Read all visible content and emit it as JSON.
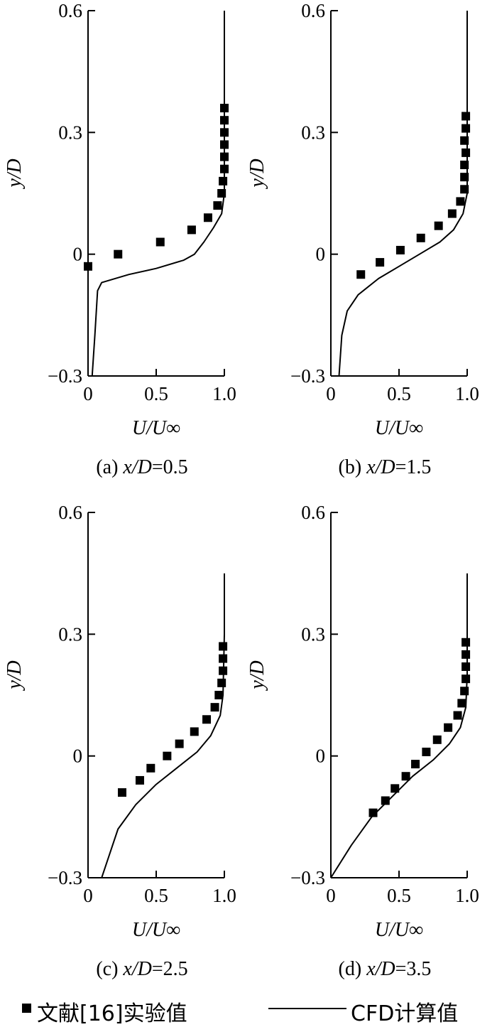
{
  "chart_data": [
    {
      "type": "scatter+line",
      "caption_prefix": "(a) ",
      "caption_var": "x/D",
      "caption_value": "=0.5",
      "xlabel": "U/U∞",
      "ylabel": "y/D",
      "xlim": [
        0,
        1.0
      ],
      "ylim": [
        -0.3,
        0.6
      ],
      "xticks": [
        "0",
        "0.5",
        "1.0"
      ],
      "xtick_values": [
        0,
        0.5,
        1.0
      ],
      "yticks": [
        "0.6",
        "0.3",
        "0",
        "−0.3"
      ],
      "ytick_values": [
        0.6,
        0.3,
        0,
        -0.3
      ],
      "experiment": [
        [
          0,
          -0.03
        ],
        [
          0.22,
          0.0
        ],
        [
          0.53,
          0.03
        ],
        [
          0.76,
          0.06
        ],
        [
          0.88,
          0.09
        ],
        [
          0.95,
          0.12
        ],
        [
          0.98,
          0.15
        ],
        [
          0.99,
          0.18
        ],
        [
          1.0,
          0.21
        ],
        [
          1.0,
          0.24
        ],
        [
          1.0,
          0.27
        ],
        [
          1.0,
          0.3
        ],
        [
          1.0,
          0.33
        ],
        [
          1.0,
          0.36
        ]
      ],
      "cfd": [
        [
          0.03,
          -0.3
        ],
        [
          0.05,
          -0.2
        ],
        [
          0.07,
          -0.09
        ],
        [
          0.1,
          -0.07
        ],
        [
          0.3,
          -0.05
        ],
        [
          0.5,
          -0.035
        ],
        [
          0.7,
          -0.015
        ],
        [
          0.78,
          0.0
        ],
        [
          0.85,
          0.03
        ],
        [
          0.92,
          0.065
        ],
        [
          0.98,
          0.1
        ],
        [
          1.0,
          0.15
        ],
        [
          1.0,
          0.6
        ]
      ]
    },
    {
      "type": "scatter+line",
      "caption_prefix": "(b) ",
      "caption_var": "x/D",
      "caption_value": "=1.5",
      "xlabel": "U/U∞",
      "ylabel": "y/D",
      "xlim": [
        0,
        1.0
      ],
      "ylim": [
        -0.3,
        0.6
      ],
      "xticks": [
        "0",
        "0.5",
        "1.0"
      ],
      "xtick_values": [
        0,
        0.5,
        1.0
      ],
      "yticks": [
        "0.6",
        "0.3",
        "0",
        "−0.3"
      ],
      "ytick_values": [
        0.6,
        0.3,
        0,
        -0.3
      ],
      "experiment": [
        [
          0.22,
          -0.05
        ],
        [
          0.36,
          -0.02
        ],
        [
          0.51,
          0.01
        ],
        [
          0.66,
          0.04
        ],
        [
          0.79,
          0.07
        ],
        [
          0.89,
          0.1
        ],
        [
          0.95,
          0.13
        ],
        [
          0.98,
          0.16
        ],
        [
          0.98,
          0.19
        ],
        [
          0.98,
          0.22
        ],
        [
          0.99,
          0.25
        ],
        [
          0.98,
          0.28
        ],
        [
          0.99,
          0.31
        ],
        [
          0.99,
          0.34
        ]
      ],
      "cfd": [
        [
          0.06,
          -0.3
        ],
        [
          0.08,
          -0.2
        ],
        [
          0.12,
          -0.14
        ],
        [
          0.2,
          -0.1
        ],
        [
          0.35,
          -0.06
        ],
        [
          0.5,
          -0.03
        ],
        [
          0.65,
          0.0
        ],
        [
          0.8,
          0.03
        ],
        [
          0.9,
          0.06
        ],
        [
          0.97,
          0.1
        ],
        [
          1.0,
          0.15
        ],
        [
          1.0,
          0.6
        ]
      ]
    },
    {
      "type": "scatter+line",
      "caption_prefix": "(c) ",
      "caption_var": "x/D",
      "caption_value": "=2.5",
      "xlabel": "U/U∞",
      "ylabel": "y/D",
      "xlim": [
        0,
        1.0
      ],
      "ylim": [
        -0.3,
        0.6
      ],
      "xticks": [
        "0",
        "0.5",
        "1.0"
      ],
      "xtick_values": [
        0,
        0.5,
        1.0
      ],
      "yticks": [
        "0.6",
        "0.3",
        "0",
        "−0.3"
      ],
      "ytick_values": [
        0.6,
        0.3,
        0,
        -0.3
      ],
      "experiment": [
        [
          0.25,
          -0.09
        ],
        [
          0.38,
          -0.06
        ],
        [
          0.46,
          -0.03
        ],
        [
          0.58,
          0.0
        ],
        [
          0.67,
          0.03
        ],
        [
          0.78,
          0.06
        ],
        [
          0.87,
          0.09
        ],
        [
          0.93,
          0.12
        ],
        [
          0.96,
          0.15
        ],
        [
          0.98,
          0.18
        ],
        [
          0.99,
          0.21
        ],
        [
          0.99,
          0.24
        ],
        [
          0.99,
          0.27
        ]
      ],
      "cfd": [
        [
          0.1,
          -0.3
        ],
        [
          0.15,
          -0.25
        ],
        [
          0.22,
          -0.18
        ],
        [
          0.35,
          -0.12
        ],
        [
          0.5,
          -0.07
        ],
        [
          0.65,
          -0.03
        ],
        [
          0.8,
          0.01
        ],
        [
          0.9,
          0.05
        ],
        [
          0.97,
          0.1
        ],
        [
          0.99,
          0.15
        ],
        [
          1.0,
          0.3
        ],
        [
          1.0,
          0.45
        ]
      ]
    },
    {
      "type": "scatter+line",
      "caption_prefix": "(d) ",
      "caption_var": "x/D",
      "caption_value": "=3.5",
      "xlabel": "U/U∞",
      "ylabel": "y/D",
      "xlim": [
        0,
        1.0
      ],
      "ylim": [
        -0.3,
        0.6
      ],
      "xticks": [
        "0",
        "0.5",
        "1.0"
      ],
      "xtick_values": [
        0,
        0.5,
        1.0
      ],
      "yticks": [
        "0.6",
        "0.3",
        "0",
        "−0.3"
      ],
      "ytick_values": [
        0.6,
        0.3,
        0,
        -0.3
      ],
      "experiment": [
        [
          0.31,
          -0.14
        ],
        [
          0.4,
          -0.11
        ],
        [
          0.47,
          -0.08
        ],
        [
          0.55,
          -0.05
        ],
        [
          0.62,
          -0.02
        ],
        [
          0.7,
          0.01
        ],
        [
          0.78,
          0.04
        ],
        [
          0.86,
          0.07
        ],
        [
          0.93,
          0.1
        ],
        [
          0.96,
          0.13
        ],
        [
          0.98,
          0.16
        ],
        [
          0.99,
          0.19
        ],
        [
          0.99,
          0.22
        ],
        [
          0.99,
          0.25
        ],
        [
          0.99,
          0.28
        ]
      ],
      "cfd": [
        [
          0.0,
          -0.3
        ],
        [
          0.15,
          -0.22
        ],
        [
          0.3,
          -0.15
        ],
        [
          0.45,
          -0.1
        ],
        [
          0.6,
          -0.05
        ],
        [
          0.75,
          -0.01
        ],
        [
          0.87,
          0.03
        ],
        [
          0.95,
          0.07
        ],
        [
          0.99,
          0.12
        ],
        [
          1.0,
          0.2
        ],
        [
          1.0,
          0.45
        ]
      ]
    }
  ],
  "legend": {
    "placement": "bottom",
    "experiment_label": "文献[16]实验值",
    "cfd_label": "CFD计算值"
  }
}
